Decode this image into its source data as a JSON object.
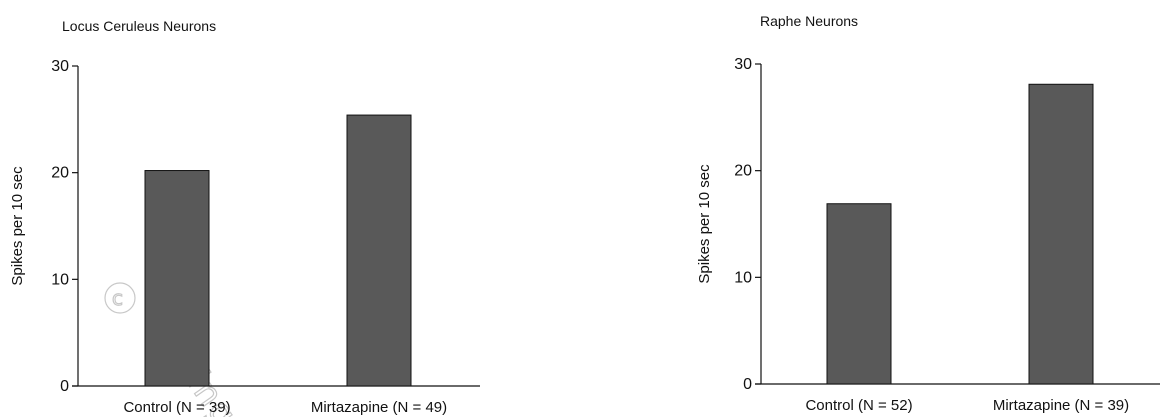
{
  "colors": {
    "bar": "#595959",
    "bar_stroke": "#111111",
    "axis": "#111111"
  },
  "chart_data": [
    {
      "type": "bar",
      "title": "Locus Ceruleus Neurons",
      "ylabel": "Spikes per 10 sec",
      "xlabel": "",
      "ylim": [
        0,
        30
      ],
      "yticks": [
        0,
        10,
        20,
        30
      ],
      "categories": [
        "Control (N = 39)",
        "Mirtazapine (N = 49)"
      ],
      "values": [
        20.2,
        25.4
      ]
    },
    {
      "type": "bar",
      "title": "Raphe Neurons",
      "ylabel": "Spikes per 10 sec",
      "xlabel": "",
      "ylim": [
        0,
        30
      ],
      "yticks": [
        0,
        10,
        20,
        30
      ],
      "categories": [
        "Control (N = 52)",
        "Mirtazapine (N = 39)"
      ],
      "values": [
        16.9,
        28.1
      ]
    }
  ]
}
